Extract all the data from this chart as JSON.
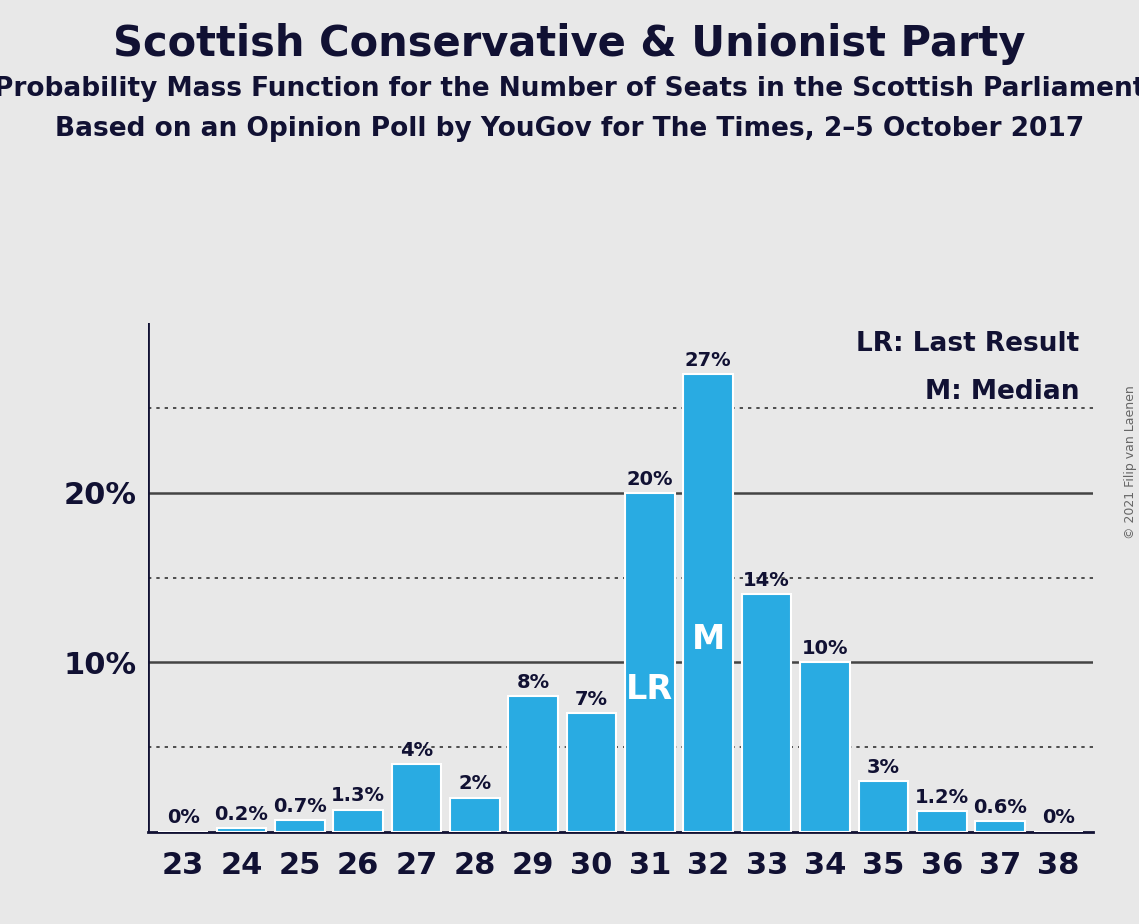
{
  "title": "Scottish Conservative & Unionist Party",
  "subtitle1": "Probability Mass Function for the Number of Seats in the Scottish Parliament",
  "subtitle2": "Based on an Opinion Poll by YouGov for The Times, 2–5 October 2017",
  "copyright": "© 2021 Filip van Laenen",
  "categories": [
    23,
    24,
    25,
    26,
    27,
    28,
    29,
    30,
    31,
    32,
    33,
    34,
    35,
    36,
    37,
    38
  ],
  "values": [
    0.0,
    0.2,
    0.7,
    1.3,
    4.0,
    2.0,
    8.0,
    7.0,
    20.0,
    27.0,
    14.0,
    10.0,
    3.0,
    1.2,
    0.6,
    0.0
  ],
  "labels": [
    "0%",
    "0.2%",
    "0.7%",
    "1.3%",
    "4%",
    "2%",
    "8%",
    "7%",
    "20%",
    "27%",
    "14%",
    "10%",
    "3%",
    "1.2%",
    "0.6%",
    "0%"
  ],
  "bar_color": "#29ABE2",
  "background_color": "#E8E8E8",
  "lr_seat": 31,
  "median_seat": 32,
  "dotted_lines": [
    5,
    15,
    25
  ],
  "solid_lines": [
    10,
    20
  ],
  "legend_lr": "LR: Last Result",
  "legend_m": "M: Median",
  "title_fontsize": 30,
  "subtitle_fontsize": 19,
  "label_fontsize": 14,
  "tick_fontsize": 22,
  "legend_fontsize": 19,
  "yaxis_label_fontsize": 22,
  "lr_label_fontsize": 24,
  "m_label_fontsize": 24
}
